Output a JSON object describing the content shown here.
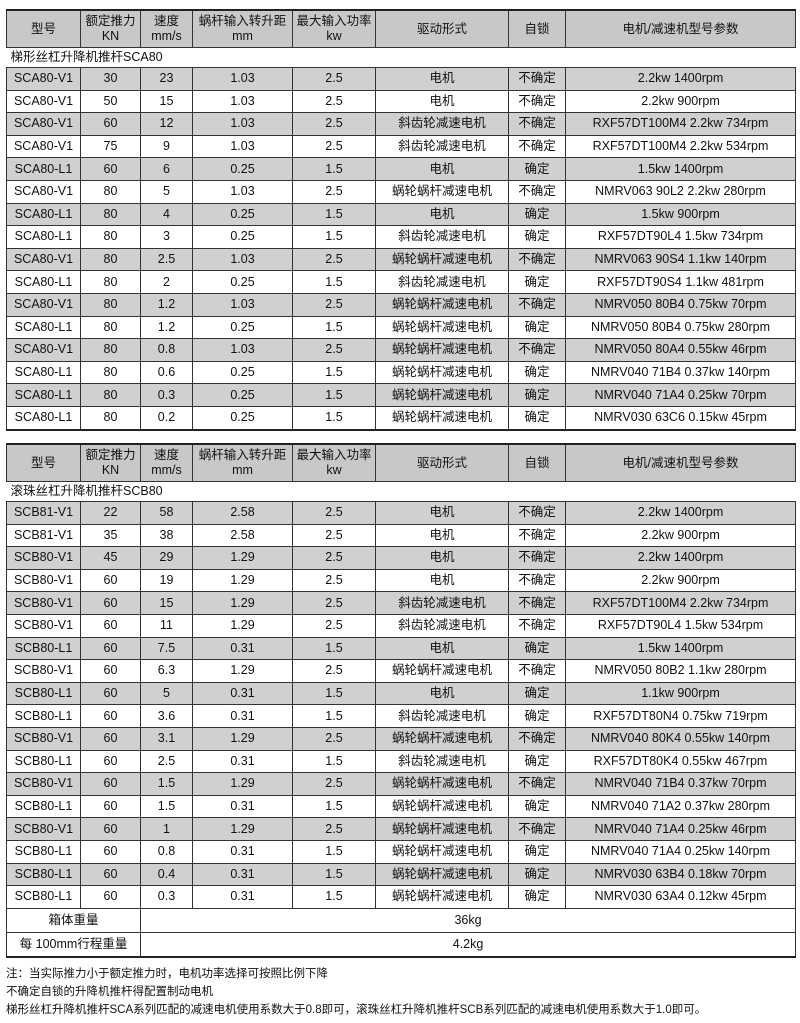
{
  "headers": [
    {
      "l1": "型号",
      "l2": ""
    },
    {
      "l1": "额定推力",
      "l2": "KN"
    },
    {
      "l1": "速度",
      "l2": "mm/s"
    },
    {
      "l1": "蜗杆输入转升距",
      "l2": "mm"
    },
    {
      "l1": "最大输入功率",
      "l2": "kw"
    },
    {
      "l1": "驱动形式",
      "l2": ""
    },
    {
      "l1": "自锁",
      "l2": ""
    },
    {
      "l1": "电机/减速机型号参数",
      "l2": ""
    }
  ],
  "table1": {
    "title": "梯形丝杠升降机推杆SCA80",
    "rows": [
      [
        "SCA80-V1",
        "30",
        "23",
        "1.03",
        "2.5",
        "电机",
        "不确定",
        "2.2kw 1400rpm"
      ],
      [
        "SCA80-V1",
        "50",
        "15",
        "1.03",
        "2.5",
        "电机",
        "不确定",
        "2.2kw 900rpm"
      ],
      [
        "SCA80-V1",
        "60",
        "12",
        "1.03",
        "2.5",
        "斜齿轮减速电机",
        "不确定",
        "RXF57DT100M4 2.2kw 734rpm"
      ],
      [
        "SCA80-V1",
        "75",
        "9",
        "1.03",
        "2.5",
        "斜齿轮减速电机",
        "不确定",
        "RXF57DT100M4 2.2kw 534rpm"
      ],
      [
        "SCA80-L1",
        "60",
        "6",
        "0.25",
        "1.5",
        "电机",
        "确定",
        "1.5kw 1400rpm"
      ],
      [
        "SCA80-V1",
        "80",
        "5",
        "1.03",
        "2.5",
        "蜗轮蜗杆减速电机",
        "不确定",
        "NMRV063 90L2 2.2kw 280rpm"
      ],
      [
        "SCA80-L1",
        "80",
        "4",
        "0.25",
        "1.5",
        "电机",
        "确定",
        "1.5kw 900rpm"
      ],
      [
        "SCA80-L1",
        "80",
        "3",
        "0.25",
        "1.5",
        "斜齿轮减速电机",
        "确定",
        "RXF57DT90L4 1.5kw 734rpm"
      ],
      [
        "SCA80-V1",
        "80",
        "2.5",
        "1.03",
        "2.5",
        "蜗轮蜗杆减速电机",
        "不确定",
        "NMRV063 90S4 1.1kw 140rpm"
      ],
      [
        "SCA80-L1",
        "80",
        "2",
        "0.25",
        "1.5",
        "斜齿轮减速电机",
        "确定",
        "RXF57DT90S4 1.1kw 481rpm"
      ],
      [
        "SCA80-V1",
        "80",
        "1.2",
        "1.03",
        "2.5",
        "蜗轮蜗杆减速电机",
        "不确定",
        "NMRV050 80B4 0.75kw 70rpm"
      ],
      [
        "SCA80-L1",
        "80",
        "1.2",
        "0.25",
        "1.5",
        "蜗轮蜗杆减速电机",
        "确定",
        "NMRV050 80B4 0.75kw 280rpm"
      ],
      [
        "SCA80-V1",
        "80",
        "0.8",
        "1.03",
        "2.5",
        "蜗轮蜗杆减速电机",
        "不确定",
        "NMRV050 80A4 0.55kw 46rpm"
      ],
      [
        "SCA80-L1",
        "80",
        "0.6",
        "0.25",
        "1.5",
        "蜗轮蜗杆减速电机",
        "确定",
        "NMRV040 71B4 0.37kw 140rpm"
      ],
      [
        "SCA80-L1",
        "80",
        "0.3",
        "0.25",
        "1.5",
        "蜗轮蜗杆减速电机",
        "确定",
        "NMRV040 71A4 0.25kw 70rpm"
      ],
      [
        "SCA80-L1",
        "80",
        "0.2",
        "0.25",
        "1.5",
        "蜗轮蜗杆减速电机",
        "确定",
        "NMRV030 63C6 0.15kw 45rpm"
      ]
    ]
  },
  "table2": {
    "title": "滚珠丝杠升降机推杆SCB80",
    "rows": [
      [
        "SCB81-V1",
        "22",
        "58",
        "2.58",
        "2.5",
        "电机",
        "不确定",
        "2.2kw 1400rpm"
      ],
      [
        "SCB81-V1",
        "35",
        "38",
        "2.58",
        "2.5",
        "电机",
        "不确定",
        "2.2kw 900rpm"
      ],
      [
        "SCB80-V1",
        "45",
        "29",
        "1.29",
        "2.5",
        "电机",
        "不确定",
        "2.2kw 1400rpm"
      ],
      [
        "SCB80-V1",
        "60",
        "19",
        "1.29",
        "2.5",
        "电机",
        "不确定",
        "2.2kw 900rpm"
      ],
      [
        "SCB80-V1",
        "60",
        "15",
        "1.29",
        "2.5",
        "斜齿轮减速电机",
        "不确定",
        "RXF57DT100M4 2.2kw 734rpm"
      ],
      [
        "SCB80-V1",
        "60",
        "11",
        "1.29",
        "2.5",
        "斜齿轮减速电机",
        "不确定",
        "RXF57DT90L4 1.5kw 534rpm"
      ],
      [
        "SCB80-L1",
        "60",
        "7.5",
        "0.31",
        "1.5",
        "电机",
        "确定",
        "1.5kw 1400rpm"
      ],
      [
        "SCB80-V1",
        "60",
        "6.3",
        "1.29",
        "2.5",
        "蜗轮蜗杆减速电机",
        "不确定",
        "NMRV050 80B2 1.1kw 280rpm"
      ],
      [
        "SCB80-L1",
        "60",
        "5",
        "0.31",
        "1.5",
        "电机",
        "确定",
        "1.1kw 900rpm"
      ],
      [
        "SCB80-L1",
        "60",
        "3.6",
        "0.31",
        "1.5",
        "斜齿轮减速电机",
        "确定",
        "RXF57DT80N4 0.75kw 719rpm"
      ],
      [
        "SCB80-V1",
        "60",
        "3.1",
        "1.29",
        "2.5",
        "蜗轮蜗杆减速电机",
        "不确定",
        "NMRV040 80K4 0.55kw 140rpm"
      ],
      [
        "SCB80-L1",
        "60",
        "2.5",
        "0.31",
        "1.5",
        "斜齿轮减速电机",
        "确定",
        "RXF57DT80K4 0.55kw 467rpm"
      ],
      [
        "SCB80-V1",
        "60",
        "1.5",
        "1.29",
        "2.5",
        "蜗轮蜗杆减速电机",
        "不确定",
        "NMRV040 71B4 0.37kw 70rpm"
      ],
      [
        "SCB80-L1",
        "60",
        "1.5",
        "0.31",
        "1.5",
        "蜗轮蜗杆减速电机",
        "确定",
        "NMRV040 71A2 0.37kw 280rpm"
      ],
      [
        "SCB80-V1",
        "60",
        "1",
        "1.29",
        "2.5",
        "蜗轮蜗杆减速电机",
        "不确定",
        "NMRV040 71A4 0.25kw 46rpm"
      ],
      [
        "SCB80-L1",
        "60",
        "0.8",
        "0.31",
        "1.5",
        "蜗轮蜗杆减速电机",
        "确定",
        "NMRV040 71A4 0.25kw 140rpm"
      ],
      [
        "SCB80-L1",
        "60",
        "0.4",
        "0.31",
        "1.5",
        "蜗轮蜗杆减速电机",
        "确定",
        "NMRV030 63B4 0.18kw 70rpm"
      ],
      [
        "SCB80-L1",
        "60",
        "0.3",
        "0.31",
        "1.5",
        "蜗轮蜗杆减速电机",
        "确定",
        "NMRV030 63A4 0.12kw 45rpm"
      ]
    ],
    "weights": [
      {
        "label": "箱体重量",
        "value": "36kg"
      },
      {
        "label": "每 100mm行程重量",
        "value": "4.2kg"
      }
    ]
  },
  "notes": [
    "注：当实际推力小于额定推力时，电机功率选择可按照比例下降",
    "不确定自锁的升降机推杆得配置制动电机",
    "梯形丝杠升降机推杆SCA系列匹配的减速电机使用系数大于0.8即可，滚珠丝杠升降机推杆SCB系列匹配的减速电机使用系数大于1.0即可。"
  ]
}
